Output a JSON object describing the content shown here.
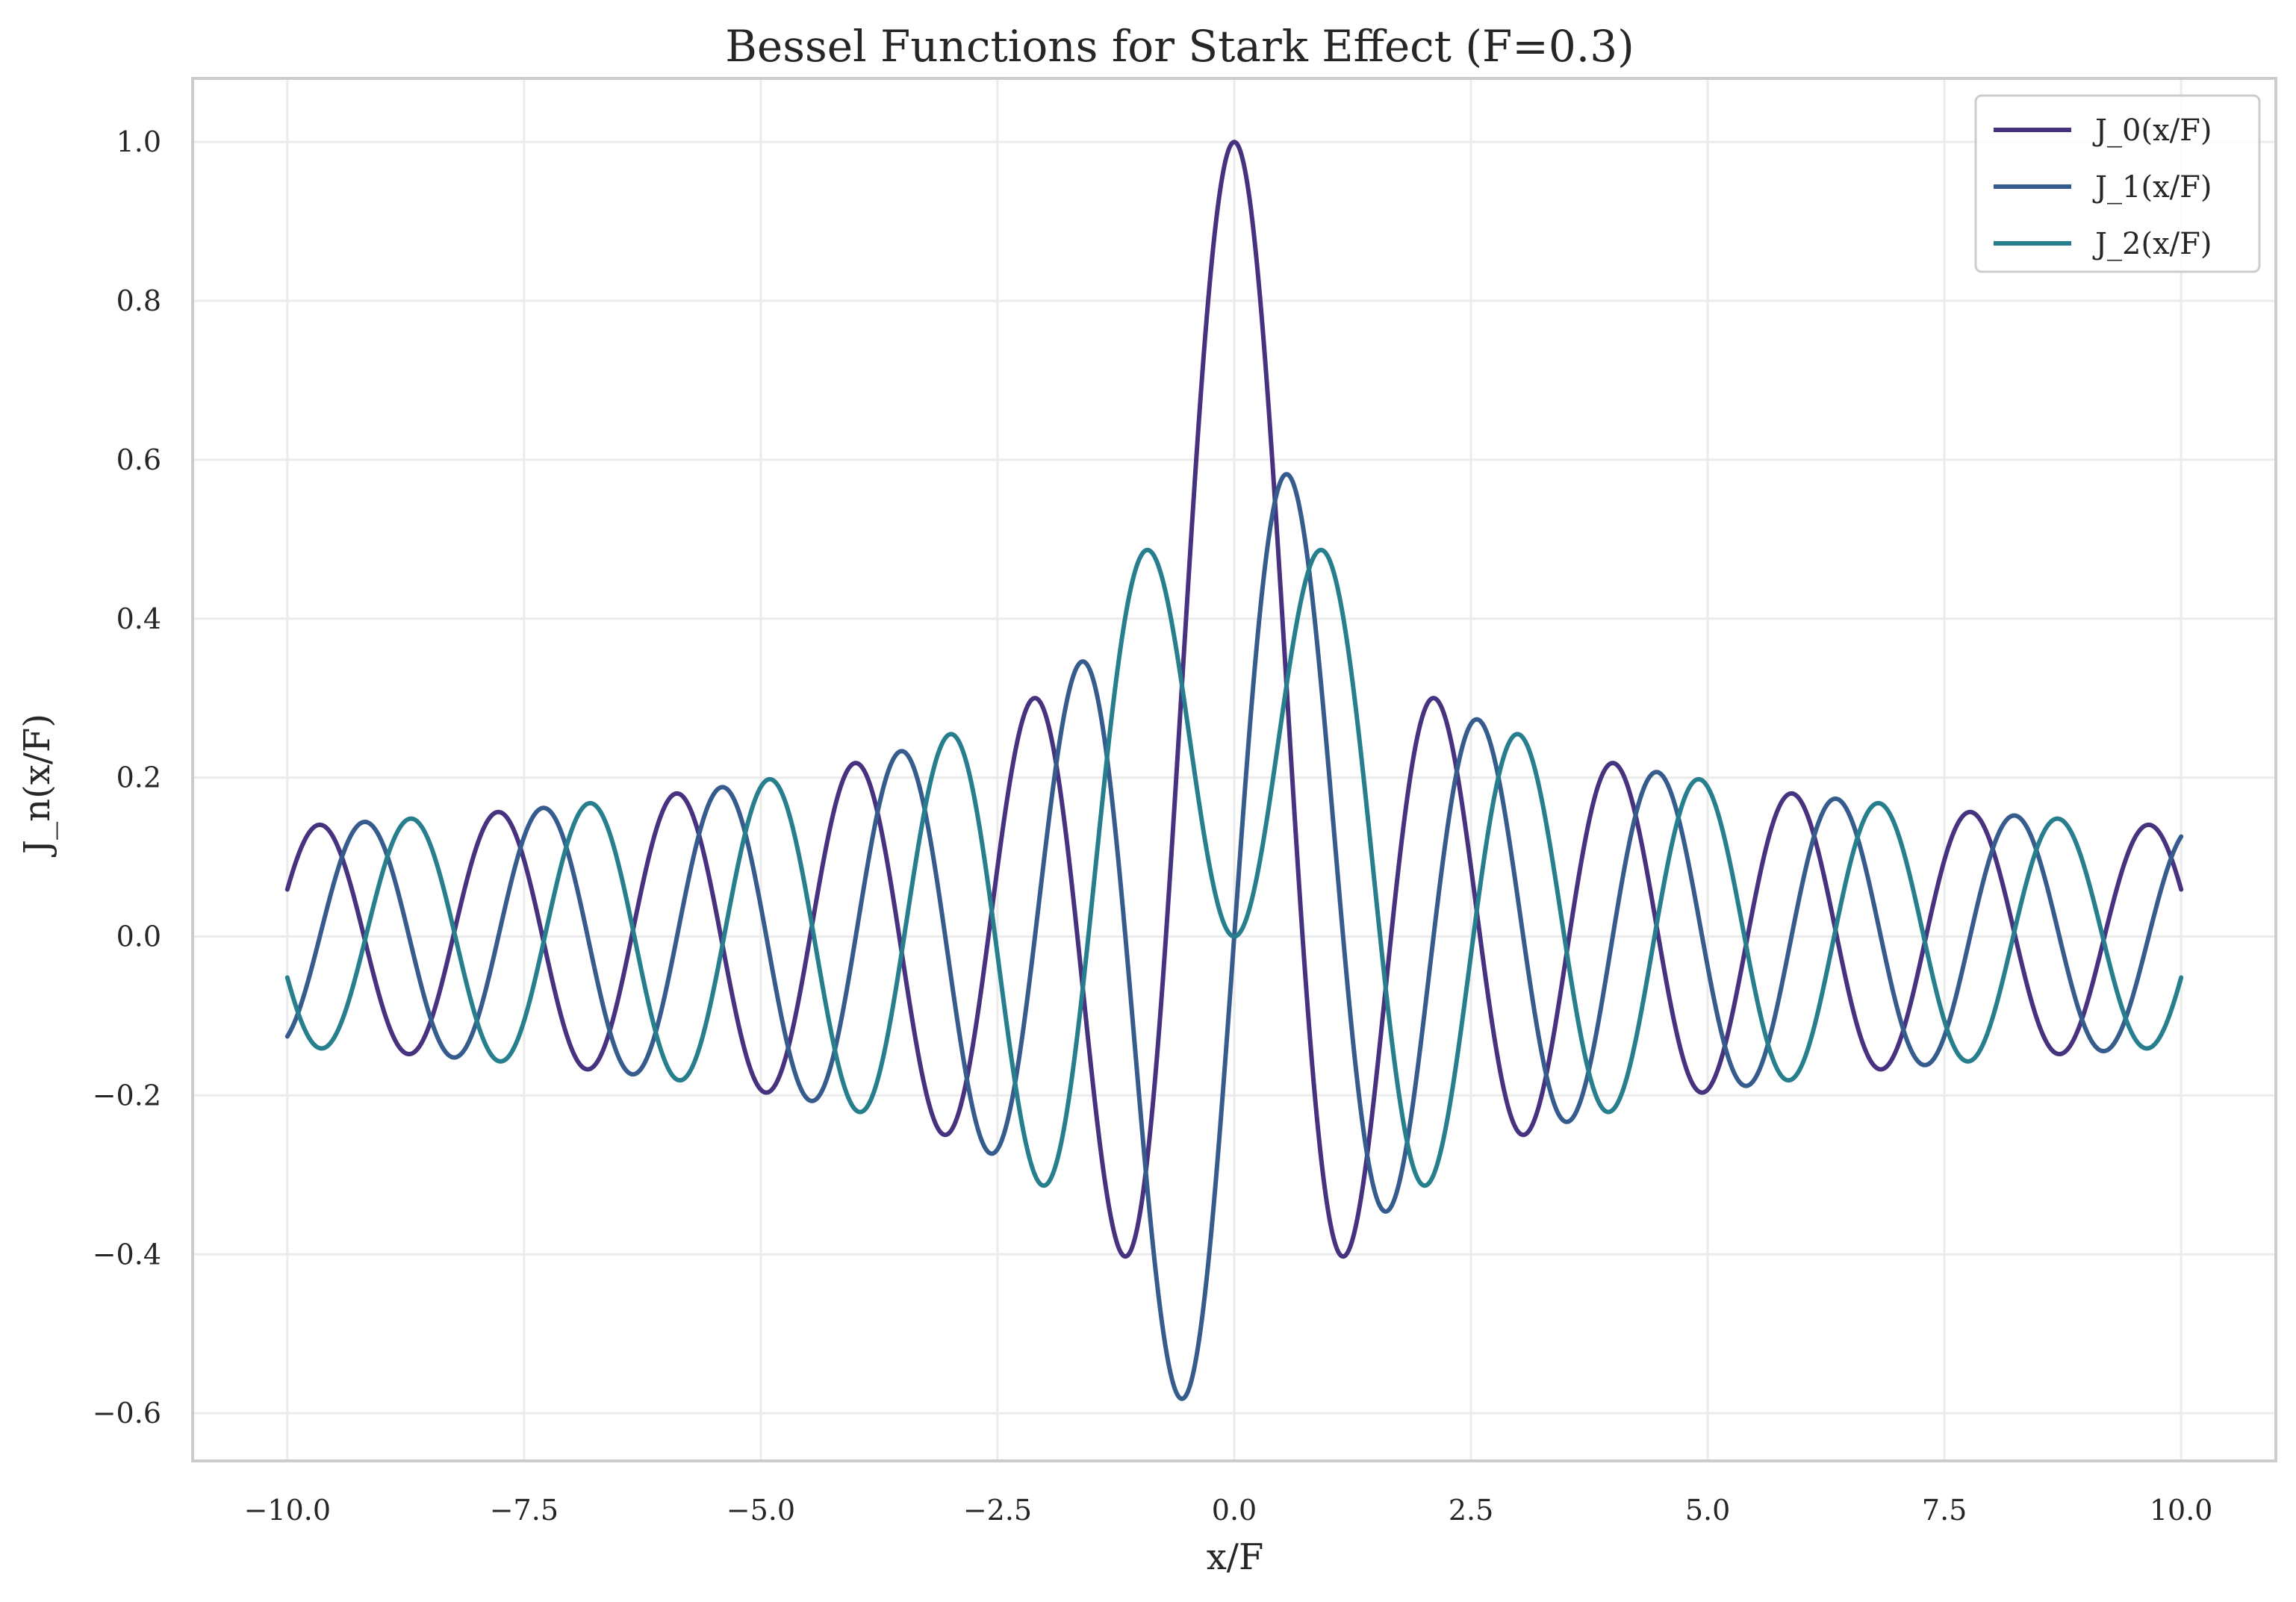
{
  "chart_data": {
    "type": "line",
    "title": "Bessel Functions for Stark Effect (F=0.3)",
    "xlabel": "x/F",
    "ylabel": "J_n(x/F)",
    "xlim": [
      -11.0,
      11.0
    ],
    "ylim": [
      -0.66,
      1.08
    ],
    "x_range": [
      -10.0,
      10.0
    ],
    "F": 0.3,
    "x_ticks": [
      -10.0,
      -7.5,
      -5.0,
      -2.5,
      0.0,
      2.5,
      5.0,
      7.5,
      10.0
    ],
    "x_tick_labels": [
      "−10.0",
      "−7.5",
      "−5.0",
      "−2.5",
      "0.0",
      "2.5",
      "5.0",
      "7.5",
      "10.0"
    ],
    "y_ticks": [
      -0.6,
      -0.4,
      -0.2,
      0.0,
      0.2,
      0.4,
      0.6,
      0.8,
      1.0
    ],
    "y_tick_labels": [
      "−0.6",
      "−0.4",
      "−0.2",
      "0.0",
      "0.2",
      "0.4",
      "0.6",
      "0.8",
      "1.0"
    ],
    "grid": true,
    "legend_position": "top-right",
    "series": [
      {
        "name": "J_0(x/F)",
        "order": 0,
        "color": "#46327e"
      },
      {
        "name": "J_1(x/F)",
        "order": 1,
        "color": "#365c8d"
      },
      {
        "name": "J_2(x/F)",
        "order": 2,
        "color": "#277f8e"
      }
    ]
  }
}
